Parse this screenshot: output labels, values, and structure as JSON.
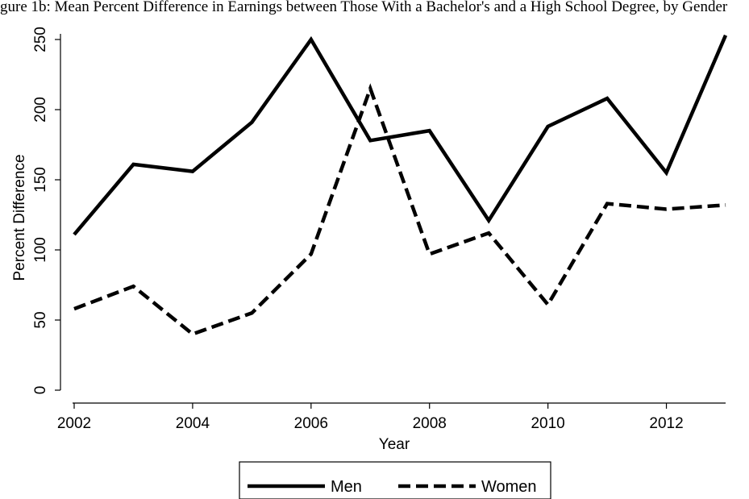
{
  "caption": "gure 1b: Mean Percent Difference in Earnings between Those With a Bachelor's and a High School Degree, by Gender",
  "chart_data": {
    "type": "line",
    "title": "",
    "xlabel": "Year",
    "ylabel": "Percent Difference",
    "x": [
      2002,
      2003,
      2004,
      2005,
      2006,
      2007,
      2008,
      2009,
      2010,
      2011,
      2012,
      2013
    ],
    "xticks": [
      2002,
      2004,
      2006,
      2008,
      2010,
      2012
    ],
    "yticks": [
      0,
      50,
      100,
      150,
      200,
      250
    ],
    "xlim": [
      2002,
      2013
    ],
    "ylim": [
      0,
      250
    ],
    "grid": false,
    "legend_position": "bottom",
    "series": [
      {
        "name": "Men",
        "style": "solid",
        "color": "#000000",
        "values": [
          111,
          161,
          156,
          191,
          250,
          178,
          185,
          121,
          188,
          208,
          155,
          253
        ]
      },
      {
        "name": "Women",
        "style": "dashed",
        "color": "#000000",
        "values": [
          58,
          74,
          40,
          55,
          97,
          215,
          97,
          112,
          61,
          133,
          129,
          132
        ]
      }
    ]
  }
}
